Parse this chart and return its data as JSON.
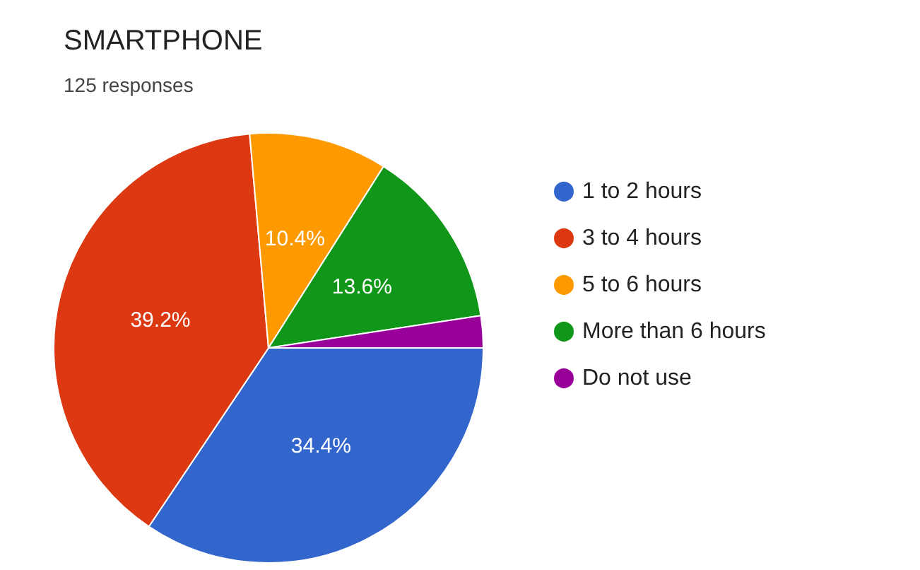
{
  "chart_data": {
    "type": "pie",
    "title": "SMARTPHONE",
    "subtitle": "125 responses",
    "categories": [
      "1 to 2 hours",
      "3 to 4 hours",
      "5 to 6 hours",
      "More than 6 hours",
      "Do not use"
    ],
    "values": [
      34.4,
      39.2,
      10.4,
      13.6,
      2.4
    ],
    "colors": [
      "#3366cc",
      "#dc3912",
      "#ff9900",
      "#109618",
      "#990099"
    ],
    "value_labels": [
      "34.4%",
      "39.2%",
      "10.4%",
      "13.6%",
      null
    ],
    "legend": "right"
  }
}
